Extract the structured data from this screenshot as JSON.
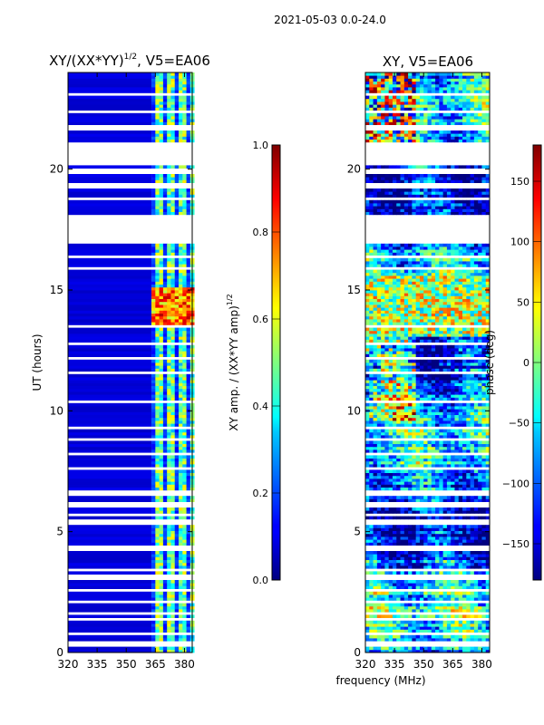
{
  "suptitle": "2021-05-03 0.0-24.0",
  "chart_data": [
    {
      "type": "heatmap",
      "title_main": "XY/(XX*YY)",
      "title_exp": "1/2",
      "title_suffix": ", V5=EA06",
      "xlabel": "",
      "ylabel": "UT (hours)",
      "xlim": [
        320,
        384
      ],
      "ylim": [
        0,
        24
      ],
      "xticks": [
        "320",
        "335",
        "350",
        "365",
        "380"
      ],
      "xtick_values": [
        320,
        335,
        350,
        365,
        380
      ],
      "yticks": [
        "0",
        "5",
        "10",
        "15",
        "20"
      ],
      "ytick_values": [
        0,
        5,
        10,
        15,
        20
      ],
      "colormap": "jet",
      "colorbar": {
        "label_main": "XY amp. / (XX*YY amp)",
        "label_exp": "1/2",
        "vmin": 0.0,
        "vmax": 1.0,
        "ticks": [
          "0.0",
          "0.2",
          "0.4",
          "0.6",
          "0.8",
          "1.0"
        ],
        "tick_values": [
          0.0,
          0.2,
          0.4,
          0.6,
          0.8,
          1.0
        ]
      },
      "gap_ranges_hours": [
        [
          17.0,
          18.1
        ],
        [
          20.2,
          21.0
        ]
      ],
      "blank_rows_hours": [
        0.35,
        0.8,
        1.4,
        1.6,
        2.1,
        2.6,
        3.1,
        3.4,
        4.3,
        5.4,
        5.7,
        6.1,
        6.6,
        7.6,
        8.2,
        8.8,
        9.3,
        10.4,
        11.6,
        12.2,
        12.8,
        13.5,
        15.9,
        16.4,
        18.8,
        19.3,
        19.9,
        21.7,
        22.4,
        23.1
      ],
      "high_amplitude_band_hours": [
        13.5,
        15.0
      ],
      "active_band_mhz": [
        363,
        382
      ]
    },
    {
      "type": "heatmap",
      "title": "XY, V5=EA06",
      "xlabel": "frequency (MHz)",
      "ylabel": "",
      "xlim": [
        320,
        384
      ],
      "ylim": [
        0,
        24
      ],
      "xticks": [
        "320",
        "335",
        "350",
        "365",
        "380"
      ],
      "xtick_values": [
        320,
        335,
        350,
        365,
        380
      ],
      "yticks": [
        "0",
        "5",
        "10",
        "15",
        "20"
      ],
      "ytick_values": [
        0,
        5,
        10,
        15,
        20
      ],
      "colormap": "jet",
      "colorbar": {
        "label": "phase (deg)",
        "vmin": -180,
        "vmax": 180,
        "ticks": [
          "150",
          "100",
          "50",
          "0",
          "−50",
          "−100",
          "−150"
        ],
        "tick_values": [
          150,
          100,
          50,
          0,
          -50,
          -100,
          -150
        ]
      },
      "gap_ranges_hours": [
        [
          17.0,
          18.1
        ],
        [
          20.2,
          21.0
        ]
      ],
      "blank_rows_hours": [
        0.35,
        0.8,
        1.4,
        1.6,
        2.1,
        2.6,
        3.1,
        3.4,
        4.3,
        5.4,
        5.7,
        6.1,
        6.6,
        7.6,
        8.2,
        8.8,
        9.3,
        10.4,
        11.6,
        12.2,
        12.8,
        13.5,
        15.9,
        16.4,
        18.8,
        19.3,
        19.9,
        21.7,
        22.4,
        23.1
      ]
    }
  ]
}
